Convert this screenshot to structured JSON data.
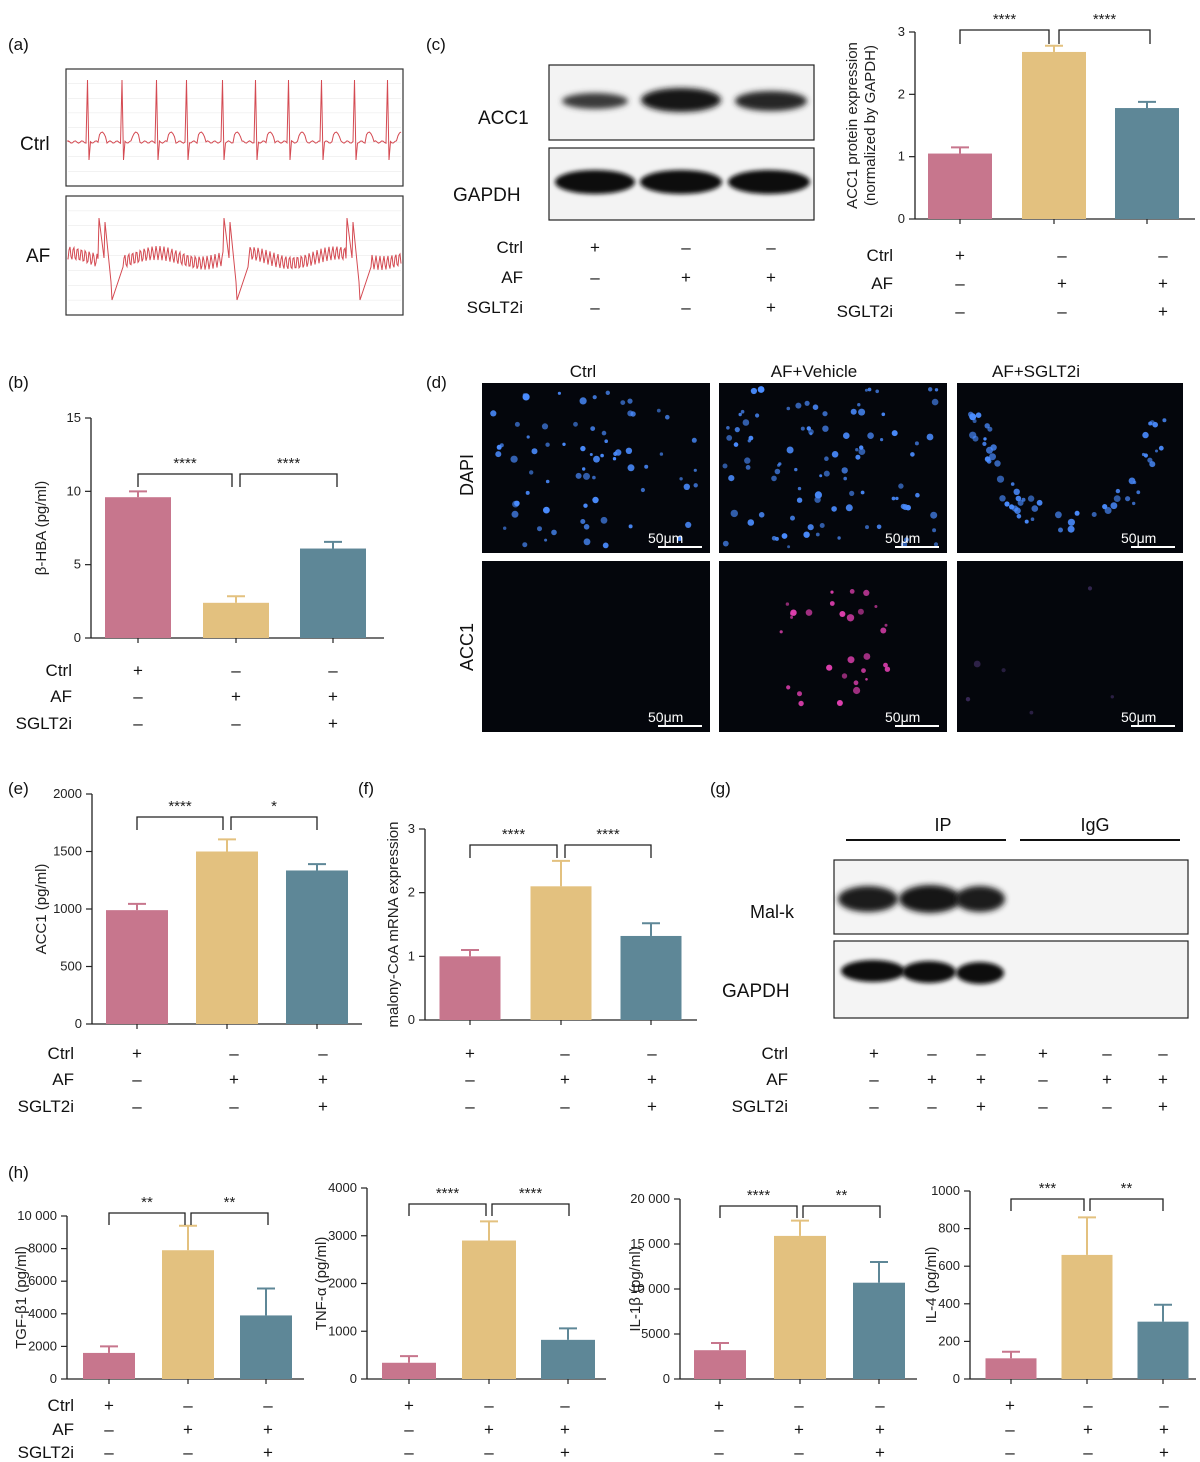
{
  "colors": {
    "ctrl": "#c7768d",
    "af": "#e3c17f",
    "sglt2i": "#5e8797",
    "ecg": "#d44a52",
    "fluor_bg": "#04060c",
    "dapi": "#4a8cff",
    "acc1_stain": "#e040b0"
  },
  "treatments": {
    "rows": [
      "Ctrl",
      "AF",
      "SGLT2i"
    ],
    "signs3": [
      [
        "+",
        "–",
        "–"
      ],
      [
        "–",
        "+",
        "+"
      ],
      [
        "–",
        "–",
        "+"
      ]
    ],
    "signs6": [
      [
        "+",
        "–",
        "–",
        "+",
        "–",
        "–"
      ],
      [
        "–",
        "+",
        "+",
        "–",
        "+",
        "+"
      ],
      [
        "–",
        "–",
        "+",
        "–",
        "–",
        "+"
      ]
    ]
  },
  "panel_a": {
    "label": "(a)",
    "traces": [
      "Ctrl",
      "AF"
    ]
  },
  "panel_c": {
    "label": "(c)",
    "blot_labels": [
      "ACC1",
      "GAPDH"
    ]
  },
  "panel_d": {
    "label": "(d)",
    "columns": [
      "Ctrl",
      "AF+Vehicle",
      "AF+SGLT2i"
    ],
    "rows": [
      "DAPI",
      "ACC1"
    ],
    "scale_bar": "50μm"
  },
  "panel_g": {
    "label": "(g)",
    "groups": [
      "IP",
      "IgG"
    ],
    "blot_labels": [
      "Mal-k",
      "GAPDH"
    ]
  },
  "panel_h": {
    "label": "(h)"
  },
  "chart_data": [
    {
      "id": "c",
      "label": "(c)",
      "type": "bar",
      "categories": [
        "Ctrl",
        "AF",
        "SGLT2i"
      ],
      "values": [
        1.05,
        2.68,
        1.78
      ],
      "errors": [
        0.1,
        0.1,
        0.1
      ],
      "ylabel": "ACC1 protein expression (normalized by GAPDH)",
      "ylim": [
        0,
        3
      ],
      "yticks": [
        "0",
        "1",
        "2",
        "3"
      ],
      "ytick_values": [
        0,
        1,
        2,
        3
      ],
      "significance": [
        "****",
        "****"
      ]
    },
    {
      "id": "b",
      "label": "(b)",
      "type": "bar",
      "categories": [
        "Ctrl",
        "AF",
        "SGLT2i"
      ],
      "values": [
        9.6,
        2.4,
        6.1
      ],
      "errors": [
        0.4,
        0.45,
        0.45
      ],
      "ylabel": "β-HBA (pg/ml)",
      "ylim": [
        0,
        15
      ],
      "yticks": [
        "0",
        "5",
        "10",
        "15"
      ],
      "ytick_values": [
        0,
        5,
        10,
        15
      ],
      "significance": [
        "****",
        "****"
      ]
    },
    {
      "id": "e",
      "label": "(e)",
      "type": "bar",
      "categories": [
        "Ctrl",
        "AF",
        "SGLT2i"
      ],
      "values": [
        990,
        1500,
        1335
      ],
      "errors": [
        55,
        105,
        55
      ],
      "ylabel": "ACC1 (pg/ml)",
      "ylim": [
        0,
        2000
      ],
      "yticks": [
        "0",
        "500",
        "1000",
        "1500",
        "2000"
      ],
      "ytick_values": [
        0,
        500,
        1000,
        1500,
        2000
      ],
      "significance": [
        "****",
        "*"
      ]
    },
    {
      "id": "f",
      "label": "(f)",
      "type": "bar",
      "categories": [
        "Ctrl",
        "AF",
        "SGLT2i"
      ],
      "values": [
        1.0,
        2.1,
        1.32
      ],
      "errors": [
        0.1,
        0.4,
        0.2
      ],
      "ylabel": "malony-CoA mRNA expression",
      "ylim": [
        0,
        3
      ],
      "yticks": [
        "0",
        "1",
        "2",
        "3"
      ],
      "ytick_values": [
        0,
        1,
        2,
        3
      ],
      "significance": [
        "****",
        "****"
      ]
    },
    {
      "id": "h1",
      "label": "(h)",
      "type": "bar",
      "categories": [
        "Ctrl",
        "AF",
        "SGLT2i"
      ],
      "values": [
        1600,
        7900,
        3900
      ],
      "errors": [
        400,
        1500,
        1650
      ],
      "ylabel": "TGF-β1 (pg/ml)",
      "ylim": [
        0,
        10000
      ],
      "yticks": [
        "0",
        "2000",
        "4000",
        "6000",
        "8000",
        "10 000"
      ],
      "ytick_values": [
        0,
        2000,
        4000,
        6000,
        8000,
        10000
      ],
      "significance": [
        "**",
        "**"
      ]
    },
    {
      "id": "h2",
      "type": "bar",
      "categories": [
        "Ctrl",
        "AF",
        "SGLT2i"
      ],
      "values": [
        340,
        2900,
        820
      ],
      "errors": [
        140,
        400,
        240
      ],
      "ylabel": "TNF-α (pg/ml)",
      "ylim": [
        0,
        4000
      ],
      "yticks": [
        "0",
        "1000",
        "2000",
        "3000",
        "4000"
      ],
      "ytick_values": [
        0,
        1000,
        2000,
        3000,
        4000
      ],
      "significance": [
        "****",
        "****"
      ]
    },
    {
      "id": "h3",
      "type": "bar",
      "categories": [
        "Ctrl",
        "AF",
        "SGLT2i"
      ],
      "values": [
        3200,
        15900,
        10700
      ],
      "errors": [
        800,
        1700,
        2300
      ],
      "ylabel": "IL-1β (pg/ml)",
      "ylim": [
        0,
        20000
      ],
      "yticks": [
        "0",
        "5000",
        "10 000",
        "15 000",
        "20 000"
      ],
      "ytick_values": [
        0,
        5000,
        10000,
        15000,
        20000
      ],
      "significance": [
        "****",
        "**"
      ]
    },
    {
      "id": "h4",
      "type": "bar",
      "categories": [
        "Ctrl",
        "AF",
        "SGLT2i"
      ],
      "values": [
        110,
        660,
        305
      ],
      "errors": [
        35,
        200,
        90
      ],
      "ylabel": "IL-4 (pg/ml)",
      "ylim": [
        0,
        1000
      ],
      "yticks": [
        "0",
        "200",
        "400",
        "600",
        "800",
        "1000"
      ],
      "ytick_values": [
        0,
        200,
        400,
        600,
        800,
        1000
      ],
      "significance": [
        "***",
        "**"
      ]
    }
  ]
}
